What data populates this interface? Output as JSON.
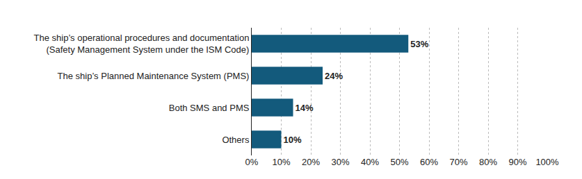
{
  "chart_data": {
    "type": "bar",
    "orientation": "horizontal",
    "categories": [
      "The ship’s operational procedures and documentation\n(Safety Management System under the ISM Code)",
      "The ship’s Planned Maintenance System (PMS)",
      "Both SMS and PMS",
      "Others"
    ],
    "values": [
      53,
      24,
      14,
      10
    ],
    "value_labels": [
      "53%",
      "24%",
      "14%",
      "10%"
    ],
    "data_labels": true,
    "color": "#135a7c",
    "xlim": [
      0,
      100
    ],
    "xticks": [
      {
        "value": 0,
        "label": "0%"
      },
      {
        "value": 10,
        "label": "10%"
      },
      {
        "value": 20,
        "label": "20%"
      },
      {
        "value": 30,
        "label": "30%"
      },
      {
        "value": 40,
        "label": "40%"
      },
      {
        "value": 50,
        "label": "50%"
      },
      {
        "value": 60,
        "label": "60%"
      },
      {
        "value": 70,
        "label": "70%"
      },
      {
        "value": 80,
        "label": "80%"
      },
      {
        "value": 90,
        "label": "90%"
      },
      {
        "value": 100,
        "label": "100%"
      }
    ],
    "grid": true
  }
}
